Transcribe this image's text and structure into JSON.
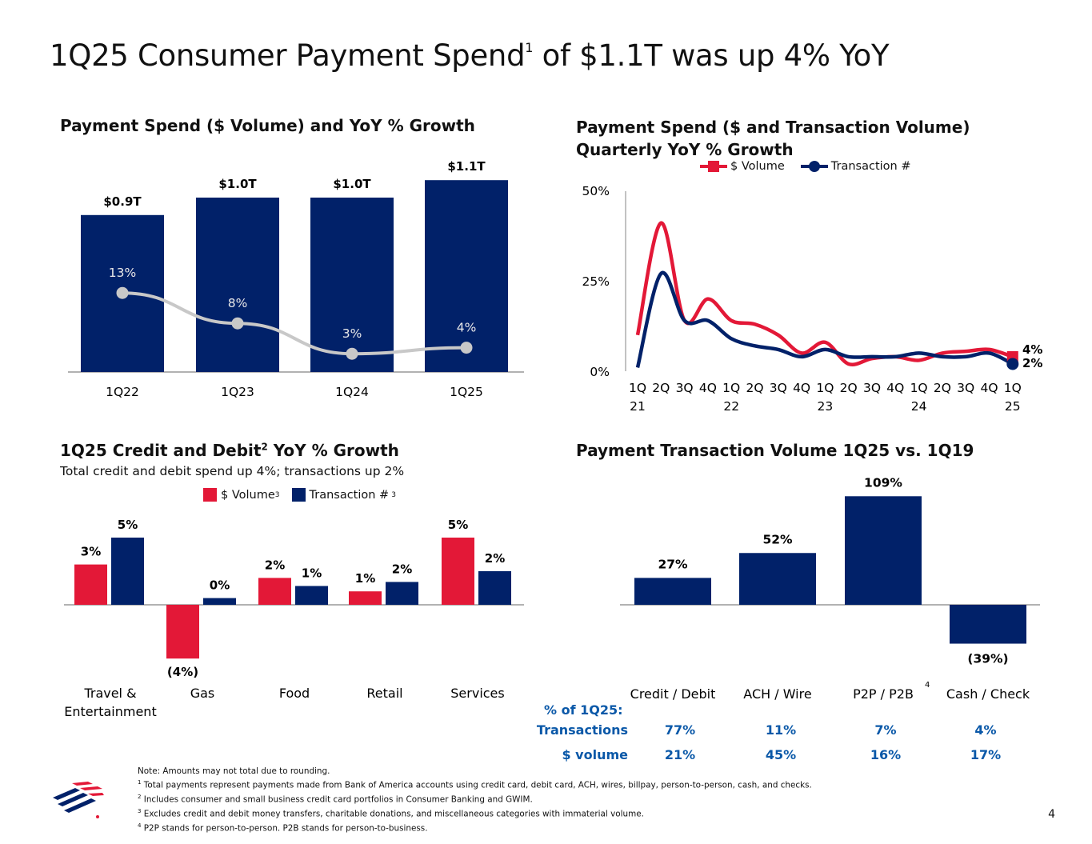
{
  "page": {
    "title": "1Q25 Consumer Payment Spend",
    "title_sup": "1",
    "title_rest": " of $1.1T was up 4% YoY",
    "page_number": "4",
    "colors": {
      "navy": "#012169",
      "red": "#e31837",
      "grey": "#c8c8c8",
      "blue_text": "#0a58a8"
    }
  },
  "chart_data": [
    {
      "type": "bar",
      "title": "Payment Spend ($ Volume) and YoY % Growth",
      "categories": [
        "1Q22",
        "1Q23",
        "1Q24",
        "1Q25"
      ],
      "series": [
        {
          "values": [
            0.9,
            1.0,
            1.0,
            1.1
          ],
          "labels": [
            "$0.9T",
            "$1.0T",
            "$1.0T",
            "$1.1T"
          ]
        },
        {
          "type": "line",
          "values": [
            13,
            8,
            3,
            4
          ],
          "labels": [
            "13%",
            "8%",
            "3%",
            "4%"
          ]
        }
      ]
    },
    {
      "type": "line",
      "title": "Payment Spend ($ and Transaction Volume) Quarterly YoY % Growth",
      "x_tick_labels": [
        "1Q",
        "2Q",
        "3Q",
        "4Q",
        "1Q",
        "2Q",
        "3Q",
        "4Q",
        "1Q",
        "2Q",
        "3Q",
        "4Q",
        "1Q",
        "2Q",
        "3Q",
        "4Q",
        "1Q"
      ],
      "x_year_labels": [
        "21",
        "22",
        "23",
        "24",
        "25"
      ],
      "y_tick_labels": [
        "50%",
        "25%",
        "0%"
      ],
      "ylim": [
        0,
        50
      ],
      "legend_position": "top",
      "series": [
        {
          "name": "$ Volume",
          "color": "#e31837",
          "values": [
            10,
            41,
            14,
            20,
            14,
            13,
            10,
            5,
            8,
            2,
            3.5,
            4,
            3,
            5,
            5.5,
            6,
            4
          ],
          "end_label": "4%"
        },
        {
          "name": "Transaction #",
          "color": "#012169",
          "values": [
            1,
            27,
            14,
            14,
            9,
            7,
            6,
            4,
            6,
            4,
            4,
            4,
            5,
            4,
            4,
            5,
            2
          ],
          "end_label": "2%"
        }
      ]
    },
    {
      "type": "bar",
      "title": "1Q25 Credit and Debit",
      "title_sup": "2",
      "title_rest": " YoY % Growth",
      "subtitle": "Total credit and debit spend up 4%; transactions up 2%",
      "categories": [
        "Travel & Entertainment",
        "Gas",
        "Food",
        "Retail",
        "Services"
      ],
      "category_lines": [
        [
          "Travel &",
          "Entertainment"
        ],
        [
          "Gas"
        ],
        [
          "Food"
        ],
        [
          "Retail"
        ],
        [
          "Services"
        ]
      ],
      "series": [
        {
          "name": "$ Volume",
          "name_sup": "3",
          "color": "#e31837",
          "values": [
            3,
            -4,
            2,
            1,
            5
          ],
          "labels": [
            "3%",
            "(4%)",
            "2%",
            "1%",
            "5%"
          ]
        },
        {
          "name": "Transaction #",
          "name_sup": "3",
          "color": "#012169",
          "values": [
            5,
            0.5,
            1.4,
            1.7,
            2.5
          ],
          "labels": [
            "5%",
            "0%",
            "1%",
            "2%",
            "2%"
          ]
        }
      ]
    },
    {
      "type": "bar",
      "title": "Payment Transaction Volume 1Q25 vs. 1Q19",
      "categories": [
        "Credit / Debit",
        "ACH / Wire",
        "P2P / P2B",
        "Cash / Check"
      ],
      "category_sups": [
        "",
        "",
        "4",
        ""
      ],
      "values": [
        27,
        52,
        109,
        -39
      ],
      "labels": [
        "27%",
        "52%",
        "109%",
        "(39%)"
      ],
      "table": {
        "header": "% of 1Q25:",
        "rows": [
          {
            "label": "Transactions",
            "values": [
              "77%",
              "11%",
              "7%",
              "4%"
            ]
          },
          {
            "label": "$ volume",
            "values": [
              "21%",
              "45%",
              "16%",
              "17%"
            ]
          }
        ]
      }
    }
  ],
  "notes": {
    "lead": "Note: Amounts may not total due to rounding.",
    "items": [
      {
        "sup": "1",
        "text": " Total payments represent payments made from Bank of America accounts using credit card, debit card, ACH, wires, billpay, person-to-person, cash, and checks."
      },
      {
        "sup": "2",
        "text": " Includes consumer and small business credit card portfolios in Consumer Banking and GWIM."
      },
      {
        "sup": "3",
        "text": " Excludes credit and debit money transfers, charitable donations, and miscellaneous categories with immaterial volume."
      },
      {
        "sup": "4",
        "text": " P2P stands for person-to-person. P2B stands for person-to-business."
      }
    ]
  }
}
